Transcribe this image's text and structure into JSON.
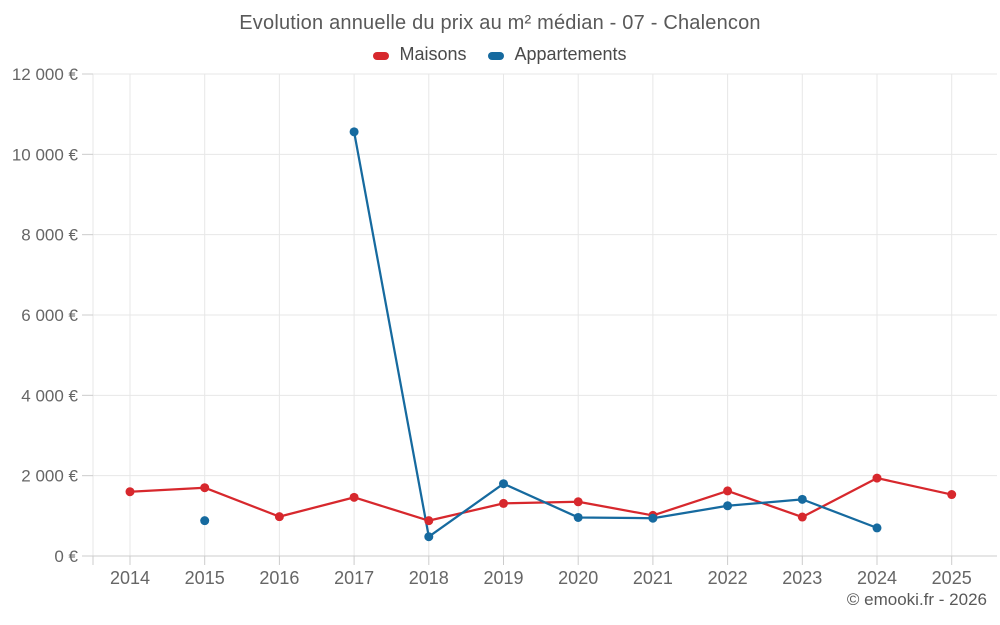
{
  "page": {
    "footer": "© emooki.fr - 2026"
  },
  "chart_data": {
    "type": "line",
    "title": "Evolution annuelle du prix au m² médian - 07 - Chalencon",
    "categories": [
      "2014",
      "2015",
      "2016",
      "2017",
      "2018",
      "2019",
      "2020",
      "2021",
      "2022",
      "2023",
      "2024",
      "2025"
    ],
    "ylim": [
      0,
      12000
    ],
    "y_ticks": [
      0,
      2000,
      4000,
      6000,
      8000,
      10000,
      12000
    ],
    "y_tick_labels": [
      "0 €",
      "2 000 €",
      "4 000 €",
      "6 000 €",
      "8 000 €",
      "10 000 €",
      "12 000 €"
    ],
    "grid": true,
    "legend_position": "top",
    "series": [
      {
        "name": "Maisons",
        "color": "#d7282d",
        "values": [
          1600,
          1700,
          980,
          1460,
          880,
          1310,
          1350,
          1010,
          1620,
          970,
          1940,
          1530
        ]
      },
      {
        "name": "Appartements",
        "color": "#166a9f",
        "values": [
          null,
          880,
          null,
          10560,
          480,
          1800,
          960,
          940,
          1250,
          1410,
          700,
          null
        ]
      }
    ]
  },
  "colors": {
    "grid": "#e7e7e7",
    "axis": "#cccccc",
    "tick_label": "#666666",
    "title": "#595959",
    "legend_text": "#4a4a4a",
    "footer": "#595959"
  }
}
